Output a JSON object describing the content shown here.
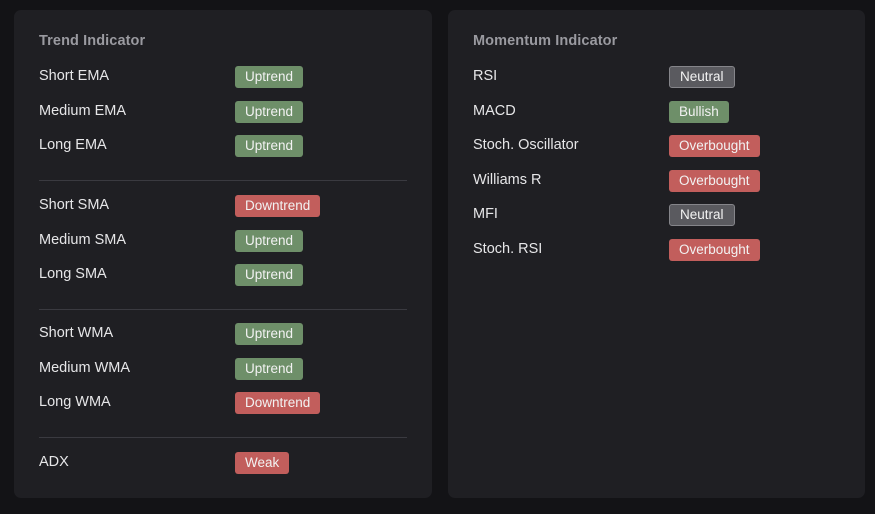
{
  "trend": {
    "title": "Trend Indicator",
    "ema": [
      {
        "label": "Short EMA",
        "status": "Uptrend"
      },
      {
        "label": "Medium EMA",
        "status": "Uptrend"
      },
      {
        "label": "Long EMA",
        "status": "Uptrend"
      }
    ],
    "sma": [
      {
        "label": "Short SMA",
        "status": "Downtrend"
      },
      {
        "label": "Medium SMA",
        "status": "Uptrend"
      },
      {
        "label": "Long SMA",
        "status": "Uptrend"
      }
    ],
    "wma": [
      {
        "label": "Short WMA",
        "status": "Uptrend"
      },
      {
        "label": "Medium WMA",
        "status": "Uptrend"
      },
      {
        "label": "Long WMA",
        "status": "Downtrend"
      }
    ],
    "adx": [
      {
        "label": "ADX",
        "status": "Weak"
      }
    ]
  },
  "momentum": {
    "title": "Momentum Indicator",
    "items": [
      {
        "label": "RSI",
        "status": "Neutral"
      },
      {
        "label": "MACD",
        "status": "Bullish"
      },
      {
        "label": "Stoch. Oscillator",
        "status": "Overbought"
      },
      {
        "label": "Williams R",
        "status": "Overbought"
      },
      {
        "label": "MFI",
        "status": "Neutral"
      },
      {
        "label": "Stoch. RSI",
        "status": "Overbought"
      }
    ]
  },
  "colors": {
    "positive": "#6e8f69",
    "negative": "#c25e5c",
    "neutral": "#5a5a5f",
    "card": "#1f1f23",
    "background": "#131316"
  }
}
